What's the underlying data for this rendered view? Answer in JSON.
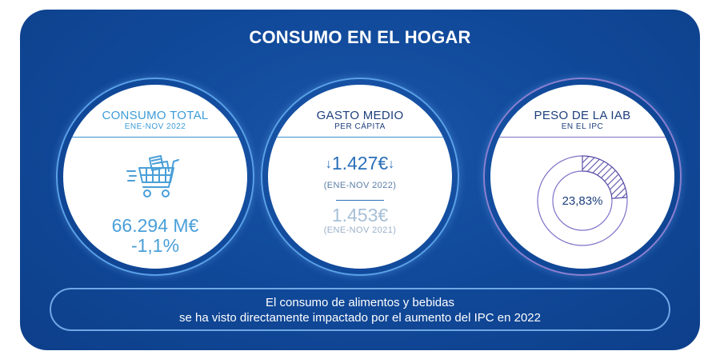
{
  "title": "CONSUMO EN EL HOGAR",
  "cards": [
    {
      "heading": "CONSUMO TOTAL",
      "subheading": "ENE-NOV 2022",
      "icon": "shopping-cart-icon",
      "value": "66.294 M€",
      "change": "-1,1%"
    },
    {
      "heading": "GASTO MEDIO",
      "subheading": "PER CÁPITA",
      "current_value": "1.427€",
      "current_period": "(ENE-NOV 2022)",
      "previous_value": "1.453€",
      "previous_period": "(ENE-NOV 2021)",
      "trend_icon": "down-arrow-icon"
    },
    {
      "heading": "PESO DE LA IAB",
      "subheading": "EN EL IPC",
      "share_label": "23,83%",
      "share_fraction": 0.2383
    }
  ],
  "footer": {
    "line1": "El consumo de alimentos y bebidas",
    "line2": "se ha visto directamente impactado por el aumento del IPC en 2022"
  },
  "colors": {
    "background": "#114a9b",
    "accent_blue": "#3d9cd8",
    "accent_purple": "#7d72c7",
    "text_navy": "#1d3f7c"
  }
}
